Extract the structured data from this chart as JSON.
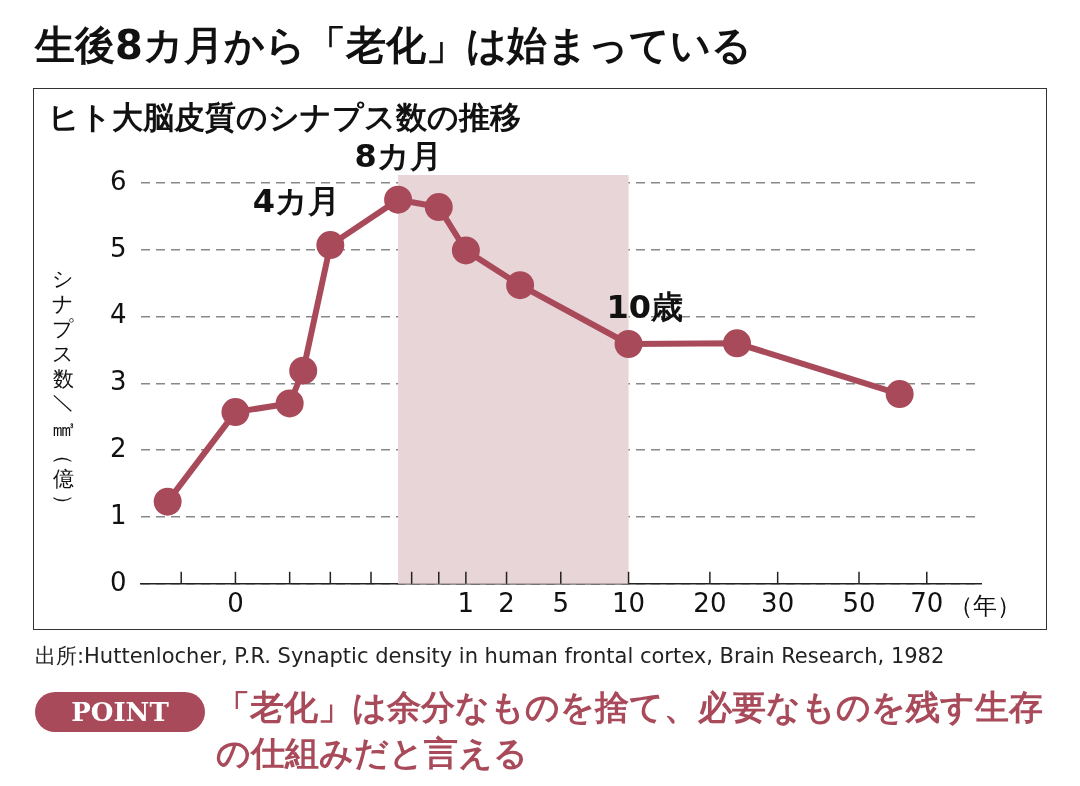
{
  "chart_data": {
    "type": "line",
    "title": "生後8カ月から「老化」は始まっている",
    "subtitle": "ヒト大脳皮質のシナプス数の推移",
    "ylabel": "シナプス数／㎣（億）",
    "xlabel": "（年）",
    "categories": [
      null,
      null,
      null,
      null,
      null,
      null,
      null,
      "0",
      null,
      null,
      null,
      null,
      null,
      null,
      null,
      null,
      null,
      null,
      null,
      null,
      null,
      null,
      null,
      null,
      "1",
      null,
      null,
      "2",
      null,
      null,
      null,
      "5",
      null,
      null,
      null,
      null,
      "10",
      null,
      null,
      null,
      null,
      null,
      "20",
      null,
      null,
      null,
      null,
      "30",
      null,
      null,
      null,
      null,
      null,
      "50",
      null,
      null,
      null,
      null,
      "70",
      null,
      null,
      null,
      null
    ],
    "series": [
      {
        "color": "#a84a5a",
        "values": [
          null,
          null,
          1.23,
          null,
          null,
          null,
          null,
          2.57,
          null,
          null,
          null,
          2.7,
          3.19,
          null,
          5.07,
          null,
          null,
          null,
          null,
          5.75,
          null,
          null,
          5.64,
          null,
          4.99,
          null,
          null,
          null,
          4.47,
          null,
          null,
          null,
          null,
          null,
          null,
          null,
          3.59,
          null,
          null,
          null,
          null,
          null,
          null,
          null,
          3.6,
          null,
          null,
          null,
          null,
          null,
          null,
          null,
          null,
          null,
          null,
          null,
          2.84,
          null,
          null,
          null,
          null,
          null,
          null
        ]
      }
    ],
    "ylim": [
      0,
      6
    ],
    "yticks": [
      0,
      1,
      2,
      3,
      4,
      5,
      6
    ],
    "grid": "y",
    "legend": false,
    "marker": "circle",
    "line_style": "solid",
    "annotations": [
      "4カ月",
      "8カ月",
      {
        "text": "10歳",
        "x": "10",
        "y": 3.59
      },
      "出所:Huttenlocher, P.R. Synaptic density in human frontal cortex, Brain Research, 1982",
      "POINT",
      "「老化」は余分なものを捨て、必要なものを残す生存の仕組みだと言える"
    ]
  }
}
